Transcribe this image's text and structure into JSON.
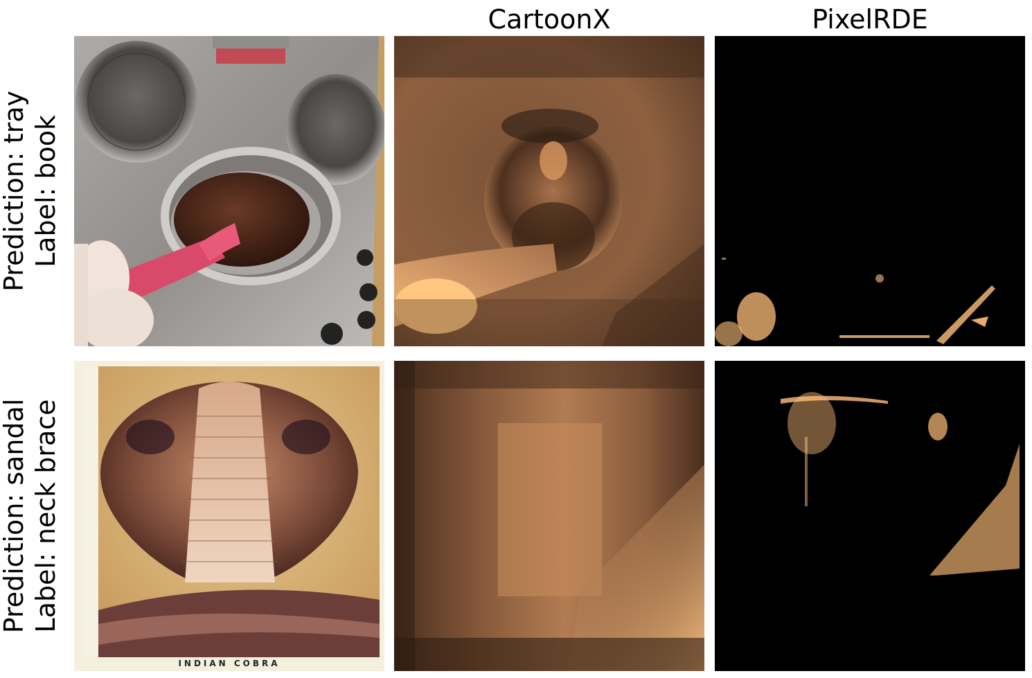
{
  "figure": {
    "columns": [
      {
        "title": ""
      },
      {
        "title": "CartoonX"
      },
      {
        "title": "PixelRDE"
      }
    ],
    "rows": [
      {
        "prediction": "Prediction: tray",
        "label": "Label: book"
      },
      {
        "prediction": "Prediction: sandal",
        "label": "Label: neck brace"
      }
    ],
    "images": {
      "row1_original": "photo of chocolate melting in a pot on a stove",
      "row1_cartoonx": "copper-tone smooth explanation map",
      "row1_pixelrde": "sparse copper-tone explanation map on black",
      "row2_original": "poster of an Indian cobra",
      "row2_cartoonx": "copper-tone smooth explanation map",
      "row2_pixelrde": "sparse copper-tone explanation map on black",
      "poster_caption": "INDIAN COBRA"
    },
    "colors": {
      "colormap_low": "#000000",
      "colormap_high": "#ffc77f"
    }
  }
}
